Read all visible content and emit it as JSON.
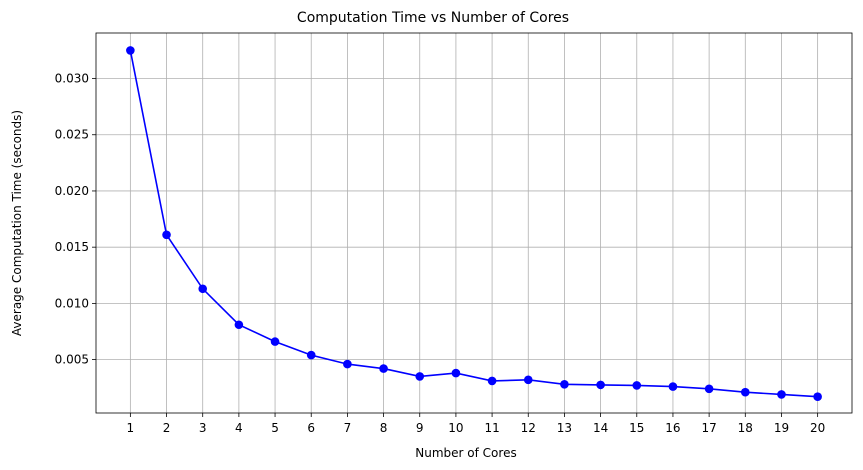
{
  "chart_data": {
    "type": "line",
    "title": "Computation Time vs Number of Cores",
    "xlabel": "Number of Cores",
    "ylabel": "Average Computation Time (seconds)",
    "x": [
      1,
      2,
      3,
      4,
      5,
      6,
      7,
      8,
      9,
      10,
      11,
      12,
      13,
      14,
      15,
      16,
      17,
      18,
      19,
      20
    ],
    "x_tick_labels": [
      "1",
      "2",
      "3",
      "4",
      "5",
      "6",
      "7",
      "8",
      "9",
      "10",
      "11",
      "12",
      "13",
      "14",
      "15",
      "16",
      "17",
      "18",
      "19",
      "20"
    ],
    "y_ticks": [
      0.005,
      0.01,
      0.015,
      0.02,
      0.025,
      0.03
    ],
    "y_tick_labels": [
      "0.005",
      "0.010",
      "0.015",
      "0.020",
      "0.025",
      "0.030"
    ],
    "xlim": [
      0.05,
      20.95
    ],
    "ylim": [
      0.00025,
      0.03405
    ],
    "grid": true,
    "series": [
      {
        "color": "#0000ff",
        "marker": "circle",
        "values": [
          0.0325,
          0.0161,
          0.0113,
          0.0081,
          0.0066,
          0.0054,
          0.0046,
          0.0042,
          0.0035,
          0.0038,
          0.0031,
          0.0032,
          0.0028,
          0.00275,
          0.0027,
          0.0026,
          0.0024,
          0.0021,
          0.0019,
          0.0017
        ]
      }
    ]
  }
}
